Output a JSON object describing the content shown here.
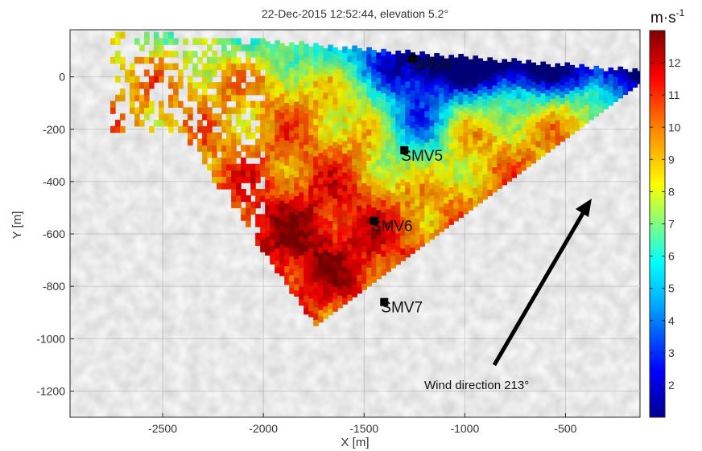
{
  "chart_data": {
    "type": "heatmap",
    "title": "22-Dec-2015 12:52:44, elevation 5.2°",
    "xlabel": "X [m]",
    "ylabel": "Y [m]",
    "xlim": [
      -2960,
      -130
    ],
    "ylim": [
      -1300,
      180
    ],
    "x_ticks": [
      "-2500",
      "-2000",
      "-1500",
      "-1000",
      "-500"
    ],
    "y_ticks": [
      "0",
      "-200",
      "-400",
      "-600",
      "-800",
      "-1000",
      "-1200"
    ],
    "grid": true,
    "colorbar": {
      "label": "m·s",
      "label_superscript": "-1",
      "min": 1,
      "max": 13,
      "ticks": [
        "2",
        "3",
        "4",
        "5",
        "6",
        "7",
        "8",
        "9",
        "10",
        "11",
        "12"
      ],
      "colormap": "jet"
    },
    "stations": [
      {
        "name": "SMV4",
        "x": -1260,
        "y": 70
      },
      {
        "name": "SMV5",
        "x": -1300,
        "y": -280
      },
      {
        "name": "SMV6",
        "x": -1450,
        "y": -550
      },
      {
        "name": "SMV7",
        "x": -1400,
        "y": -860
      }
    ],
    "annotation": {
      "text": "Wind direction 213°",
      "arrow_direction_deg": 213
    }
  }
}
